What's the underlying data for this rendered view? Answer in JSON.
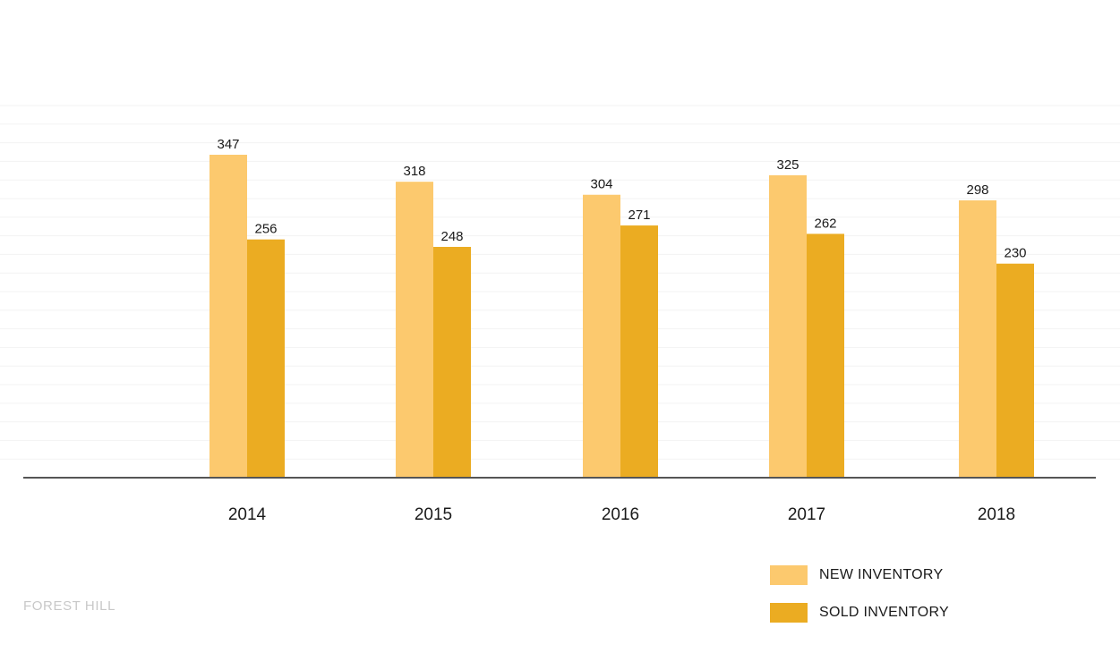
{
  "chart_data": {
    "type": "bar",
    "categories": [
      "2014",
      "2015",
      "2016",
      "2017",
      "2018"
    ],
    "series": [
      {
        "name": "NEW INVENTORY",
        "values": [
          347,
          318,
          304,
          325,
          298
        ],
        "color": "#FCC96E"
      },
      {
        "name": "SOLD INVENTORY",
        "values": [
          256,
          248,
          271,
          262,
          230
        ],
        "color": "#EBAC22"
      }
    ],
    "ylim": [
      0,
      400
    ],
    "grid": true,
    "legend_position": "bottom-right",
    "title": "",
    "xlabel": "",
    "ylabel": ""
  },
  "legend": {
    "new_label": "NEW INVENTORY",
    "sold_label": "SOLD INVENTORY"
  },
  "footer": {
    "label": "FOREST HILL"
  }
}
